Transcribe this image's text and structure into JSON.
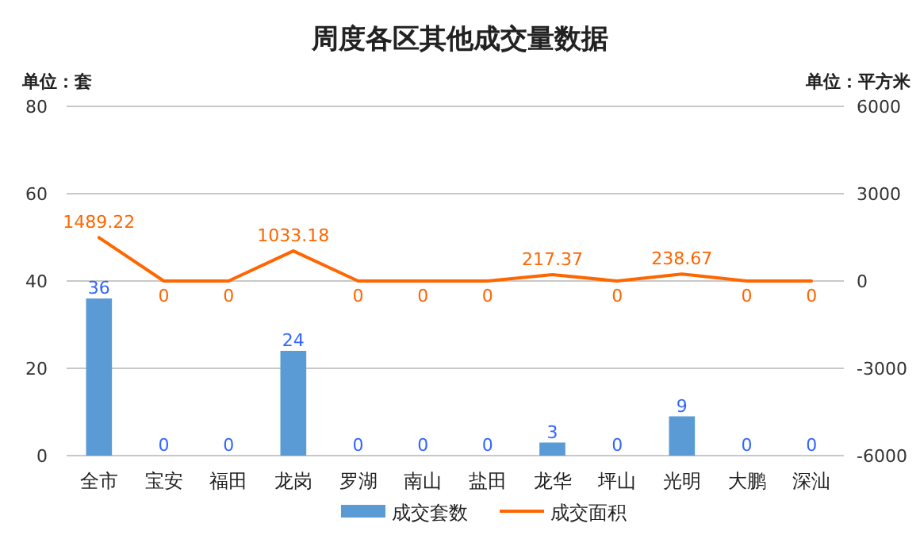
{
  "chart_data": {
    "type": "bar",
    "title": "周度各区其他成交量数据",
    "ylabel": "单位：套",
    "y2label": "单位：平方米",
    "categories": [
      "全市",
      "宝安",
      "福田",
      "龙岗",
      "罗湖",
      "南山",
      "盐田",
      "龙华",
      "坪山",
      "光明",
      "大鹏",
      "深汕"
    ],
    "series": [
      {
        "name": "成交套数",
        "color": "#5b9bd5",
        "values": [
          36,
          0,
          0,
          24,
          0,
          0,
          0,
          3,
          0,
          9,
          0,
          0
        ]
      },
      {
        "name": "成交面积",
        "type": "line",
        "axis": "y2",
        "color": "#ff6600",
        "values": [
          1489.22,
          0,
          0,
          1033.18,
          0,
          0,
          0,
          217.37,
          0,
          238.67,
          0,
          0
        ]
      }
    ],
    "ylim": [
      0,
      80
    ],
    "yticks": [
      0,
      20,
      40,
      60,
      80
    ],
    "y2lim": [
      -6000,
      6000
    ],
    "y2ticks": [
      -6000,
      -3000,
      0,
      3000,
      6000
    ],
    "grid": "y",
    "legend": "bottom",
    "data_labels": true
  }
}
